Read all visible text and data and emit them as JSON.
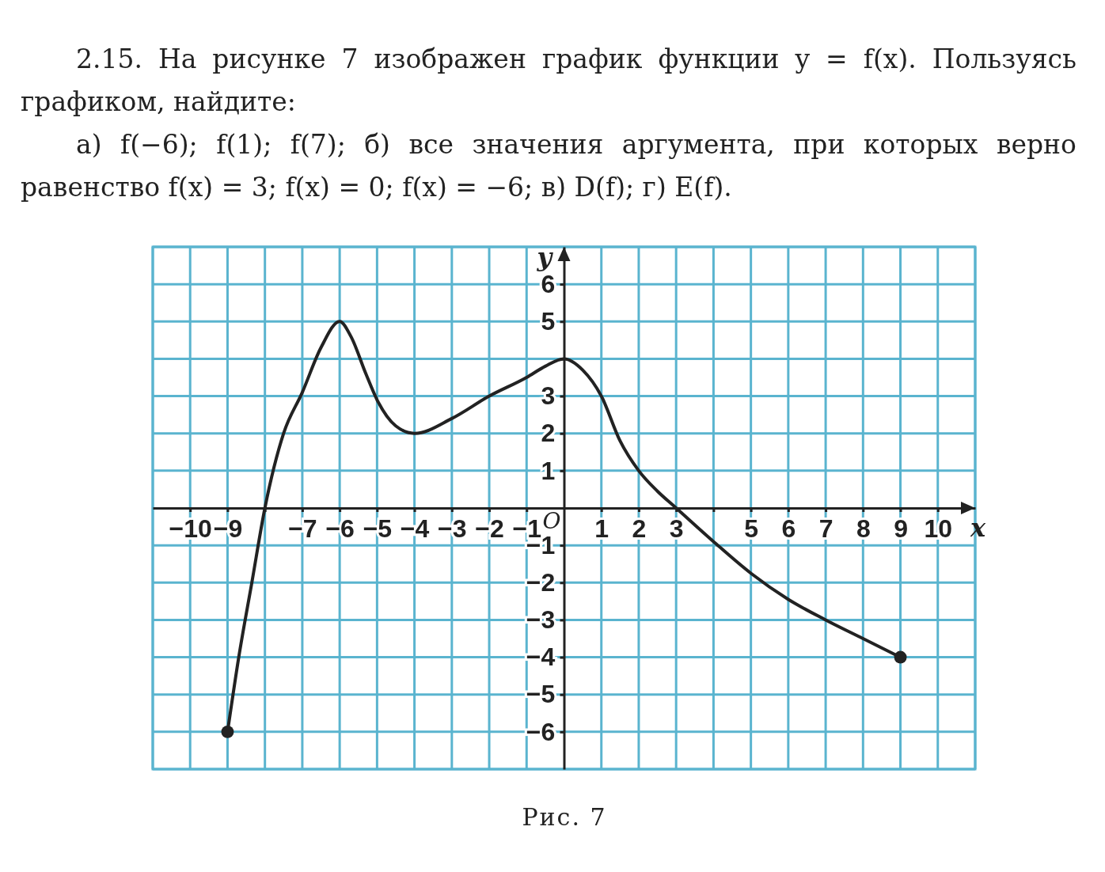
{
  "chart_data": {
    "type": "line",
    "title": "2.15. На рисунке 7 изображен график функции y = f(x). Пользуясь графиком, найдите:",
    "subtitle": "а) f(−6); f(1); f(7); б) все значения аргумента, при которых верно равенство f(x) = 3; f(x) = 0; f(x) = −6; в) D(f); г) E(f).",
    "xlabel": "x",
    "ylabel": "y",
    "annotations": [
      "O",
      "Рис. 7"
    ],
    "xlim": [
      -11,
      11
    ],
    "ylim": [
      -7,
      7
    ],
    "xticks": [
      {
        "value": -10,
        "label": "−10"
      },
      {
        "value": -9,
        "label": "−9"
      },
      {
        "value": -8,
        "label": null
      },
      {
        "value": -7,
        "label": "−7"
      },
      {
        "value": -6,
        "label": "−6"
      },
      {
        "value": -5,
        "label": "−5"
      },
      {
        "value": -4,
        "label": "−4"
      },
      {
        "value": -3,
        "label": "−3"
      },
      {
        "value": -2,
        "label": "−2"
      },
      {
        "value": -1,
        "label": "−1"
      },
      1,
      2,
      3,
      {
        "value": 4,
        "label": null
      },
      5,
      6,
      7,
      8,
      9,
      10
    ],
    "yticks": [
      {
        "value": -6,
        "label": "−6"
      },
      {
        "value": -5,
        "label": "−5"
      },
      {
        "value": -4,
        "label": "−4"
      },
      {
        "value": -3,
        "label": "−3"
      },
      {
        "value": -2,
        "label": "−2"
      },
      {
        "value": -1,
        "label": "−1"
      },
      1,
      2,
      3,
      {
        "value": 4,
        "label": null
      },
      5,
      6
    ],
    "grid": true,
    "series": [
      {
        "color": "#222222",
        "marker": "none",
        "x": [
          -9,
          -8.7,
          -8.35,
          -8,
          -7.5,
          -7,
          -6.5,
          -6,
          -5.7,
          -5.3,
          -5,
          -4.5,
          -4,
          -3,
          -2,
          -1,
          -0.5,
          0,
          0.5,
          1,
          1.5,
          2,
          2.5,
          3,
          4,
          5,
          6,
          7,
          8,
          9
        ],
        "values": [
          -6,
          -4,
          -2,
          0,
          2,
          3.1,
          4.3,
          5,
          4.6,
          3.6,
          2.9,
          2.2,
          2,
          2.4,
          3,
          3.5,
          3.8,
          4,
          3.7,
          3,
          1.8,
          1,
          0.45,
          0,
          -0.9,
          -1.75,
          -2.45,
          -3,
          -3.5,
          -4
        ]
      },
      {
        "type": "scatter",
        "color": "#222222",
        "marker": "circle",
        "x": [
          -9,
          9
        ],
        "values": [
          -6,
          -4
        ]
      }
    ]
  }
}
